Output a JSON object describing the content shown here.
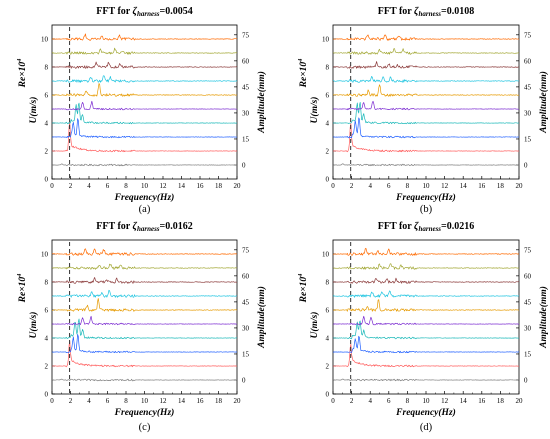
{
  "figure": {
    "title_prefix": "FFT for ",
    "title_symbol": "ζ",
    "title_subscript": "harness",
    "xlabel": "Frequency(Hz)",
    "ylabel_left_main": "U(m/s)",
    "ylabel_right": "Amplitude(mm)",
    "re_label_main": "Re×10",
    "re_label_sup": "4",
    "series_colors": [
      "#7f7f7f",
      "#ff5b5b",
      "#1f5fff",
      "#18b8b8",
      "#7b2bd1",
      "#e69a00",
      "#1ec4e0",
      "#8b3a3a",
      "#a3a836",
      "#ff6a00"
    ]
  },
  "chart_data": [
    {
      "type": "line",
      "panel": "(a)",
      "title_value": "=0.0054",
      "xlim": [
        0,
        20
      ],
      "left_ylim": [
        0,
        11
      ],
      "left_ticks": [
        0,
        2,
        4,
        6,
        8,
        10
      ],
      "x_ticks": [
        0,
        2,
        4,
        6,
        8,
        10,
        12,
        14,
        16,
        18,
        20
      ],
      "right_ticks": [
        0,
        15,
        30,
        45,
        60,
        75
      ],
      "dashed_line_x": 1.9,
      "series": [
        {
          "baseline": 1.0,
          "peaks": [
            [
              1.05,
              0.08
            ]
          ]
        },
        {
          "baseline": 2.0,
          "peaks": [
            [
              1.9,
              2.2
            ]
          ]
        },
        {
          "baseline": 3.0,
          "peaks": [
            [
              2.3,
              0.9
            ],
            [
              2.8,
              1.3
            ]
          ]
        },
        {
          "baseline": 4.0,
          "peaks": [
            [
              2.6,
              1.2
            ],
            [
              2.9,
              1.4
            ],
            [
              3.3,
              0.6
            ]
          ]
        },
        {
          "baseline": 5.0,
          "peaks": [
            [
              3.3,
              0.5
            ],
            [
              4.3,
              0.55
            ]
          ]
        },
        {
          "baseline": 6.0,
          "peaks": [
            [
              3.7,
              0.3
            ],
            [
              5.1,
              0.9
            ]
          ]
        },
        {
          "baseline": 7.0,
          "peaks": [
            [
              4.2,
              0.3
            ],
            [
              5.6,
              0.4
            ],
            [
              6.3,
              0.3
            ]
          ]
        },
        {
          "baseline": 8.0,
          "peaks": [
            [
              4.8,
              0.3
            ],
            [
              6.1,
              0.3
            ],
            [
              7.3,
              0.2
            ]
          ]
        },
        {
          "baseline": 9.0,
          "peaks": [
            [
              5.2,
              0.25
            ],
            [
              6.8,
              0.3
            ],
            [
              7.6,
              0.2
            ]
          ]
        },
        {
          "baseline": 10.0,
          "peaks": [
            [
              3.6,
              0.35
            ],
            [
              5.4,
              0.3
            ],
            [
              7.3,
              0.3
            ]
          ]
        }
      ]
    },
    {
      "type": "line",
      "panel": "(b)",
      "title_value": "=0.0108",
      "xlim": [
        0,
        20
      ],
      "left_ylim": [
        0,
        11
      ],
      "left_ticks": [
        0,
        2,
        4,
        6,
        8,
        10
      ],
      "x_ticks": [
        0,
        2,
        4,
        6,
        8,
        10,
        12,
        14,
        16,
        18,
        20
      ],
      "right_ticks": [
        0,
        15,
        30,
        45,
        60,
        75
      ],
      "dashed_line_x": 1.9,
      "series": [
        {
          "baseline": 1.0,
          "peaks": [
            [
              1.05,
              0.08
            ]
          ]
        },
        {
          "baseline": 2.0,
          "peaks": [
            [
              1.9,
              2.0
            ]
          ]
        },
        {
          "baseline": 3.0,
          "peaks": [
            [
              2.4,
              1.0
            ],
            [
              2.8,
              1.4
            ]
          ]
        },
        {
          "baseline": 4.0,
          "peaks": [
            [
              2.6,
              1.3
            ],
            [
              2.9,
              1.5
            ],
            [
              3.3,
              0.6
            ]
          ]
        },
        {
          "baseline": 5.0,
          "peaks": [
            [
              3.3,
              0.5
            ],
            [
              4.3,
              0.6
            ]
          ]
        },
        {
          "baseline": 6.0,
          "peaks": [
            [
              3.8,
              0.35
            ],
            [
              5.0,
              0.8
            ]
          ]
        },
        {
          "baseline": 7.0,
          "peaks": [
            [
              4.2,
              0.3
            ],
            [
              5.4,
              0.35
            ],
            [
              6.2,
              0.3
            ]
          ]
        },
        {
          "baseline": 8.0,
          "peaks": [
            [
              4.7,
              0.3
            ],
            [
              6.0,
              0.25
            ],
            [
              6.9,
              0.2
            ]
          ]
        },
        {
          "baseline": 9.0,
          "peaks": [
            [
              5.0,
              0.25
            ],
            [
              6.6,
              0.3
            ],
            [
              7.5,
              0.25
            ]
          ]
        },
        {
          "baseline": 10.0,
          "peaks": [
            [
              3.7,
              0.3
            ],
            [
              5.6,
              0.35
            ],
            [
              7.1,
              0.3
            ]
          ]
        }
      ]
    },
    {
      "type": "line",
      "panel": "(c)",
      "title_value": "=0.0162",
      "xlim": [
        0,
        20
      ],
      "left_ylim": [
        0,
        11
      ],
      "left_ticks": [
        0,
        2,
        4,
        6,
        8,
        10
      ],
      "x_ticks": [
        0,
        2,
        4,
        6,
        8,
        10,
        12,
        14,
        16,
        18,
        20
      ],
      "right_ticks": [
        0,
        15,
        30,
        45,
        60,
        75
      ],
      "dashed_line_x": 1.9,
      "series": [
        {
          "baseline": 1.0,
          "peaks": [
            [
              1.05,
              0.08
            ]
          ]
        },
        {
          "baseline": 2.0,
          "peaks": [
            [
              1.9,
              1.8
            ]
          ]
        },
        {
          "baseline": 3.0,
          "peaks": [
            [
              2.3,
              0.9
            ],
            [
              2.8,
              1.2
            ]
          ]
        },
        {
          "baseline": 4.0,
          "peaks": [
            [
              2.5,
              1.1
            ],
            [
              2.9,
              1.3
            ],
            [
              3.3,
              0.6
            ]
          ]
        },
        {
          "baseline": 5.0,
          "peaks": [
            [
              3.3,
              0.5
            ],
            [
              4.2,
              0.55
            ]
          ]
        },
        {
          "baseline": 6.0,
          "peaks": [
            [
              3.8,
              0.35
            ],
            [
              5.0,
              0.8
            ]
          ]
        },
        {
          "baseline": 7.0,
          "peaks": [
            [
              4.3,
              0.3
            ],
            [
              5.4,
              0.3
            ],
            [
              6.2,
              0.4
            ]
          ]
        },
        {
          "baseline": 8.0,
          "peaks": [
            [
              4.6,
              0.3
            ],
            [
              5.9,
              0.25
            ],
            [
              7.0,
              0.2
            ]
          ]
        },
        {
          "baseline": 9.0,
          "peaks": [
            [
              5.1,
              0.25
            ],
            [
              6.3,
              0.3
            ],
            [
              7.4,
              0.25
            ]
          ]
        },
        {
          "baseline": 10.0,
          "peaks": [
            [
              3.6,
              0.45
            ],
            [
              4.6,
              0.35
            ],
            [
              5.6,
              0.3
            ]
          ]
        }
      ]
    },
    {
      "type": "line",
      "panel": "(d)",
      "title_value": "=0.0216",
      "xlim": [
        0,
        20
      ],
      "left_ylim": [
        0,
        11
      ],
      "left_ticks": [
        0,
        2,
        4,
        6,
        8,
        10
      ],
      "x_ticks": [
        0,
        2,
        4,
        6,
        8,
        10,
        12,
        14,
        16,
        18,
        20
      ],
      "right_ticks": [
        0,
        15,
        30,
        45,
        60,
        75
      ],
      "dashed_line_x": 1.9,
      "series": [
        {
          "baseline": 1.0,
          "peaks": [
            [
              1.05,
              0.08
            ]
          ]
        },
        {
          "baseline": 2.0,
          "peaks": [
            [
              1.9,
              1.6
            ]
          ]
        },
        {
          "baseline": 3.0,
          "peaks": [
            [
              2.4,
              0.8
            ],
            [
              2.8,
              1.1
            ]
          ]
        },
        {
          "baseline": 4.0,
          "peaks": [
            [
              2.6,
              1.0
            ],
            [
              2.9,
              1.2
            ],
            [
              3.3,
              0.5
            ]
          ]
        },
        {
          "baseline": 5.0,
          "peaks": [
            [
              3.3,
              0.5
            ],
            [
              4.1,
              0.5
            ]
          ]
        },
        {
          "baseline": 6.0,
          "peaks": [
            [
              3.7,
              0.3
            ],
            [
              4.9,
              0.8
            ]
          ]
        },
        {
          "baseline": 7.0,
          "peaks": [
            [
              4.2,
              0.3
            ],
            [
              5.3,
              0.3
            ],
            [
              6.1,
              0.3
            ]
          ]
        },
        {
          "baseline": 8.0,
          "peaks": [
            [
              4.6,
              0.25
            ],
            [
              5.8,
              0.2
            ],
            [
              6.8,
              0.2
            ]
          ]
        },
        {
          "baseline": 9.0,
          "peaks": [
            [
              5.0,
              0.25
            ],
            [
              6.2,
              0.25
            ],
            [
              7.3,
              0.2
            ]
          ]
        },
        {
          "baseline": 10.0,
          "peaks": [
            [
              3.5,
              0.35
            ],
            [
              4.8,
              0.3
            ],
            [
              6.0,
              0.3
            ]
          ]
        }
      ]
    }
  ]
}
